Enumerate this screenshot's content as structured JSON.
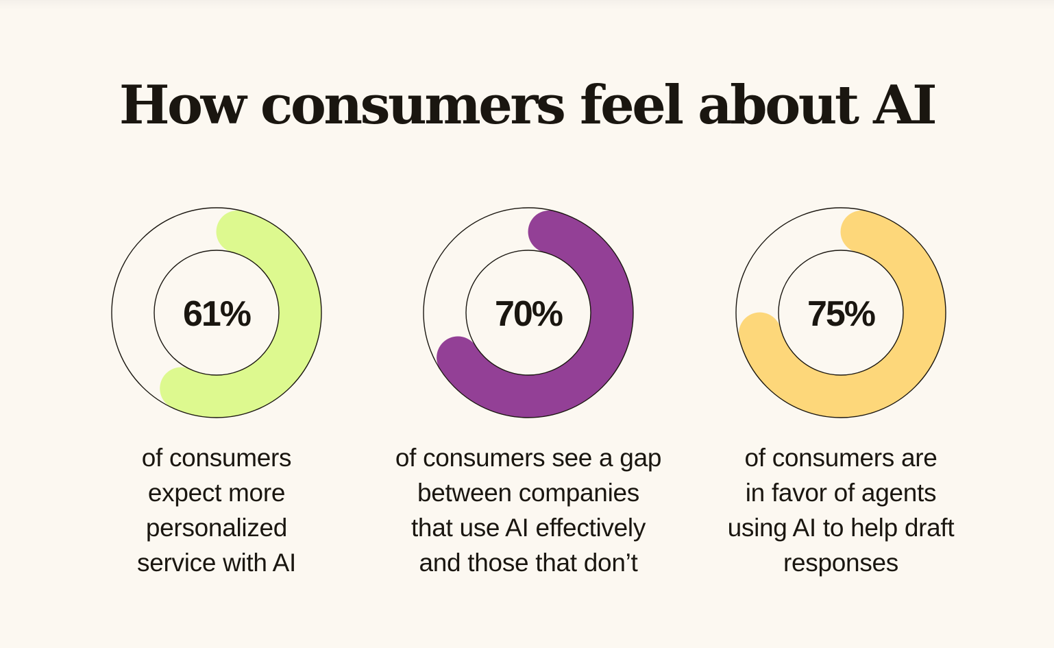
{
  "title": "How consumers feel about AI",
  "colors": {
    "background": "#FCF8F1",
    "text": "#1A1610",
    "outline": "#1A1610"
  },
  "chart_data": {
    "type": "donut",
    "title": "How consumers feel about AI",
    "items": [
      {
        "value": 61,
        "label": "61%",
        "color": "#DDF98F",
        "description": "of consumers\nexpect more\npersonalized\nservice with AI"
      },
      {
        "value": 70,
        "label": "70%",
        "color": "#934096",
        "description": "of consumers see a gap\nbetween companies\nthat use AI effectively\nand those that don’t"
      },
      {
        "value": 75,
        "label": "75%",
        "color": "#FDD77A",
        "description": "of consumers are\nin favor of agents\nusing AI to help draft\nresponses"
      }
    ]
  }
}
